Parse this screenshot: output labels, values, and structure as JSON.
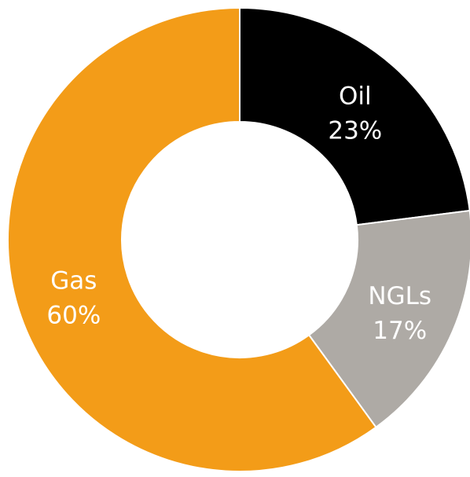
{
  "chart_data": {
    "type": "pie",
    "donut": true,
    "categories": [
      "Oil",
      "NGLs",
      "Gas"
    ],
    "values": [
      23,
      17,
      60
    ],
    "data_labels": [
      "23%",
      "17%",
      "60%"
    ],
    "colors": [
      "#000000",
      "#aeaaa5",
      "#f39c18"
    ],
    "label_colors": [
      "#ffffff",
      "#ffffff",
      "#ffffff"
    ],
    "start_angle_deg": 0,
    "direction": "clockwise",
    "legend": "none"
  }
}
